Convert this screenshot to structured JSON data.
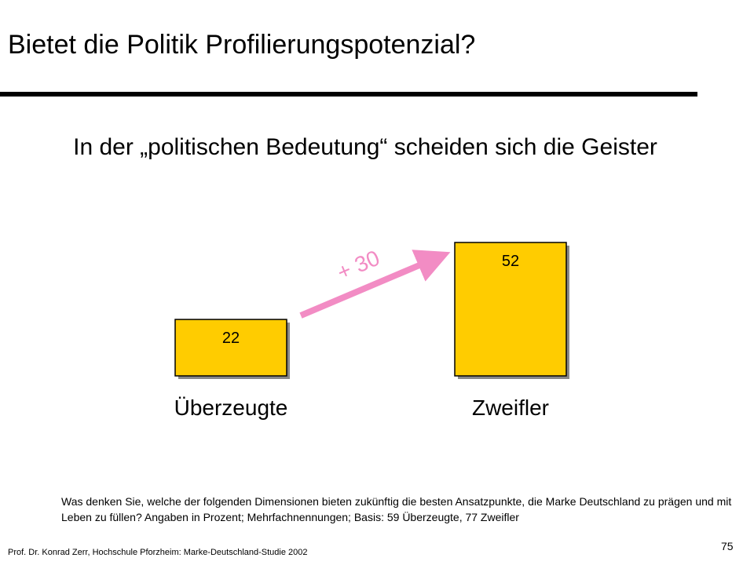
{
  "slide": {
    "title": "Bietet die Politik Profilierungspotenzial?",
    "subtitle": "In der „politischen Bedeutung“ scheiden sich die Geister",
    "note": "Was denken Sie, welche der folgenden Dimensionen bieten zukünftig die besten Ansatzpunkte, die Marke Deutschland zu prägen und mit Leben zu füllen? Angaben in Prozent; Mehrfachnennungen; Basis: 59 Überzeugte, 77 Zweifler",
    "source": "Prof. Dr. Konrad Zerr, Hochschule Pforzheim: Marke-Deutschland-Studie 2002",
    "page_number": "75"
  },
  "chart_data": {
    "type": "bar",
    "categories": [
      "Überzeugte",
      "Zweifler"
    ],
    "values": [
      22,
      52
    ],
    "data_labels": [
      "22",
      "52"
    ],
    "annotation": {
      "text": "+ 30",
      "from": "Überzeugte",
      "to": "Zweifler"
    },
    "ylim": [
      0,
      52
    ],
    "grid": false,
    "colors": {
      "bar": "#ffcc00",
      "bar_border": "#000000",
      "bar_shadow": "#888888",
      "arrow": "#f28cc4"
    }
  }
}
